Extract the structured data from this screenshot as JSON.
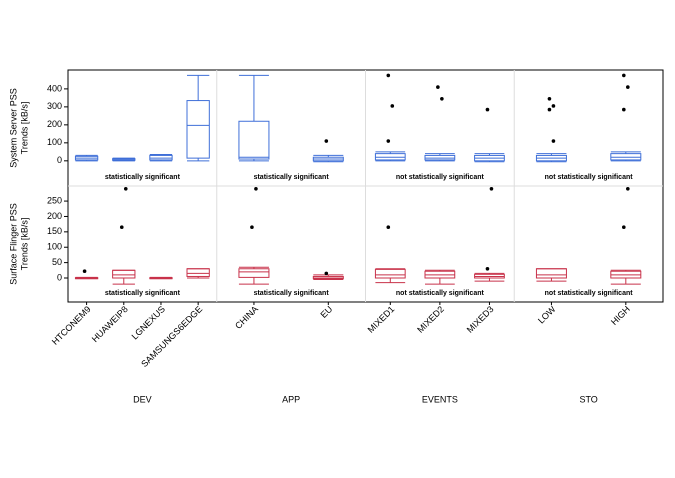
{
  "chart_data": {
    "type": "box",
    "groups": [
      {
        "name": "DEV",
        "categories": [
          "HTCONEM9",
          "HUAWEIP8",
          "LGNEXUS",
          "SAMSUNGS6EDGE"
        ]
      },
      {
        "name": "APP",
        "categories": [
          "CHINA",
          "EU"
        ]
      },
      {
        "name": "EVENTS",
        "categories": [
          "MIXED1",
          "MIXED2",
          "MIXED3"
        ]
      },
      {
        "name": "STO",
        "categories": [
          "LOW",
          "HIGH"
        ]
      }
    ],
    "panels": [
      {
        "ylabel": [
          "System Server PSS",
          "Trends [kB/s]"
        ],
        "color": "#3f6fd8",
        "ylim": [
          -140,
          505
        ],
        "yticks": [
          0,
          100,
          200,
          300,
          400
        ],
        "annotations": [
          "statistically significant",
          "statistically significant",
          "not statistically significant",
          "not statistically significant"
        ],
        "boxes": [
          [
            {
              "min": 0,
              "q1": 5,
              "median": 15,
              "q3": 25,
              "max": 30,
              "outliers": []
            },
            {
              "min": 0,
              "q1": 3,
              "median": 8,
              "q3": 12,
              "max": 15,
              "outliers": []
            },
            {
              "min": 0,
              "q1": 5,
              "median": 15,
              "q3": 30,
              "max": 35,
              "outliers": []
            },
            {
              "min": 0,
              "q1": 15,
              "median": 197,
              "q3": 335,
              "max": 475,
              "outliers": []
            }
          ],
          [
            {
              "min": 0,
              "q1": 10,
              "median": 20,
              "q3": 220,
              "max": 475,
              "outliers": []
            },
            {
              "min": -5,
              "q1": 0,
              "median": 10,
              "q3": 20,
              "max": 30,
              "outliers": [
                110
              ]
            }
          ],
          [
            {
              "min": 0,
              "q1": 5,
              "median": 20,
              "q3": 40,
              "max": 50,
              "outliers": [
                475,
                305,
                110
              ]
            },
            {
              "min": 0,
              "q1": 5,
              "median": 15,
              "q3": 30,
              "max": 40,
              "outliers": [
                410,
                345
              ]
            },
            {
              "min": -5,
              "q1": 0,
              "median": 15,
              "q3": 30,
              "max": 40,
              "outliers": [
                285
              ]
            }
          ],
          [
            {
              "min": -5,
              "q1": 0,
              "median": 15,
              "q3": 30,
              "max": 40,
              "outliers": [
                345,
                305,
                285,
                110
              ]
            },
            {
              "min": 0,
              "q1": 5,
              "median": 20,
              "q3": 40,
              "max": 50,
              "outliers": [
                475,
                410,
                285
              ]
            }
          ]
        ]
      },
      {
        "ylabel": [
          "Surface Flinger PSS",
          "Trends [kB/s]"
        ],
        "color": "#c8324a",
        "ylim": [
          -78,
          299
        ],
        "yticks": [
          0,
          50,
          100,
          150,
          200,
          250
        ],
        "annotations": [
          "statistically significant",
          "statistically significant",
          "not statistically significant",
          "not statistically significant"
        ],
        "boxes": [
          [
            {
              "min": -2,
              "q1": -1,
              "median": 0,
              "q3": 1,
              "max": 2,
              "outliers": [
                22
              ]
            },
            {
              "min": -20,
              "q1": 0,
              "median": 10,
              "q3": 25,
              "max": 25,
              "outliers": [
                165,
                290
              ]
            },
            {
              "min": -2,
              "q1": -1,
              "median": 0,
              "q3": 1,
              "max": 2,
              "outliers": []
            },
            {
              "min": 0,
              "q1": 5,
              "median": 15,
              "q3": 30,
              "max": 30,
              "outliers": []
            }
          ],
          [
            {
              "min": -20,
              "q1": 2,
              "median": 20,
              "q3": 30,
              "max": 35,
              "outliers": [
                165,
                290
              ]
            },
            {
              "min": -5,
              "q1": -2,
              "median": 0,
              "q3": 5,
              "max": 10,
              "outliers": [
                15
              ]
            }
          ],
          [
            {
              "min": -15,
              "q1": 0,
              "median": 10,
              "q3": 28,
              "max": 30,
              "outliers": [
                165
              ]
            },
            {
              "min": -20,
              "q1": 0,
              "median": 10,
              "q3": 22,
              "max": 25,
              "outliers": []
            },
            {
              "min": -10,
              "q1": 0,
              "median": 5,
              "q3": 12,
              "max": 15,
              "outliers": [
                30,
                290
              ]
            }
          ],
          [
            {
              "min": -10,
              "q1": 0,
              "median": 10,
              "q3": 30,
              "max": 30,
              "outliers": []
            },
            {
              "min": -20,
              "q1": 0,
              "median": 10,
              "q3": 22,
              "max": 25,
              "outliers": [
                165,
                290
              ]
            }
          ]
        ]
      }
    ]
  }
}
